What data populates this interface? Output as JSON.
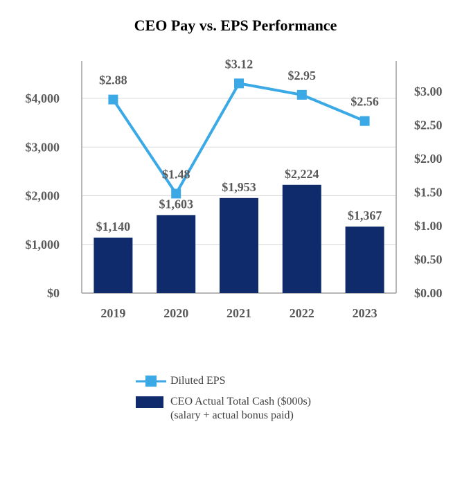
{
  "chart_data": {
    "type": "bar+line",
    "title": "CEO Pay vs. EPS Performance",
    "categories": [
      "2019",
      "2020",
      "2021",
      "2022",
      "2023"
    ],
    "bar_series": {
      "name": "CEO Actual Total Cash ($000s)",
      "name_line2": "(salary + actual bonus paid)",
      "values": [
        1140,
        1603,
        1953,
        2224,
        1367
      ],
      "labels": [
        "$1,140",
        "$1,603",
        "$1,953",
        "$2,224",
        "$1,367"
      ],
      "color": "#0f2b6b"
    },
    "line_series": {
      "name": "Diluted EPS",
      "values": [
        2.88,
        1.48,
        3.12,
        2.95,
        2.56
      ],
      "labels": [
        "$2.88",
        "$1.48",
        "$3.12",
        "$2.95",
        "$2.56"
      ],
      "color": "#3aa9e6",
      "marker_color": "#3aa9e6"
    },
    "y_left": {
      "ylim": [
        0,
        4000
      ],
      "ticks": [
        0,
        1000,
        2000,
        3000,
        4000
      ],
      "tick_labels": [
        "$0",
        "$1,000",
        "$2,000",
        "$3,000",
        "$4,000"
      ]
    },
    "y_right": {
      "ylim": [
        0,
        3.0
      ],
      "ticks": [
        0,
        0.5,
        1.0,
        1.5,
        2.0,
        2.5,
        3.0
      ],
      "tick_labels": [
        "$0.00",
        "$0.50",
        "$1.00",
        "$1.50",
        "$2.00",
        "$2.50",
        "$3.00"
      ]
    },
    "grid": true,
    "legend_position": "bottom"
  }
}
